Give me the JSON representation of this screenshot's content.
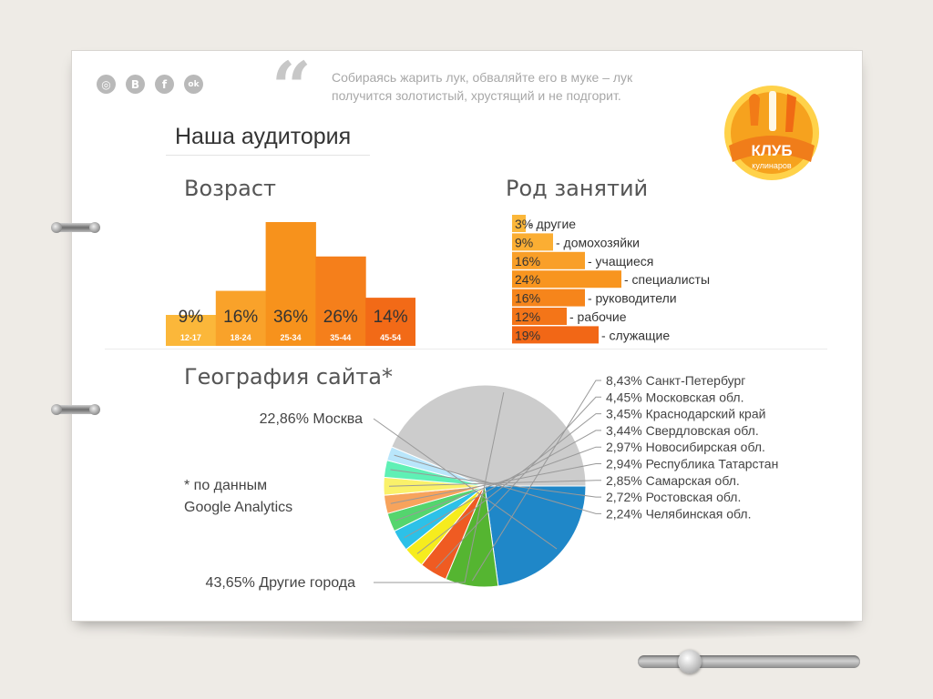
{
  "social_icons": [
    {
      "icon": "instagram-icon",
      "glyph": "◎"
    },
    {
      "icon": "vk-icon",
      "glyph": "B"
    },
    {
      "icon": "facebook-icon",
      "glyph": "f"
    },
    {
      "icon": "odnoklassniki-icon",
      "glyph": "ok"
    }
  ],
  "quote": {
    "mark": "“",
    "text": "Собираясь жарить лук, обваляйте его в муке – лук получится золотистый, хрустящий и не подгорит."
  },
  "logo": {
    "line1": "КЛУБ",
    "line2": "кулинаров",
    "colors": {
      "orange": "#f28a1d",
      "yellow": "#ffd24a",
      "white": "#ffffff"
    }
  },
  "page_title": "Наша аудитория",
  "age": {
    "title": "Возраст",
    "chart_data": {
      "type": "bar",
      "categories": [
        "12-17",
        "18-24",
        "25-34",
        "35-44",
        "45-54"
      ],
      "values": [
        9,
        16,
        36,
        26,
        14
      ],
      "value_labels": [
        "9%",
        "16%",
        "36%",
        "26%",
        "14%"
      ],
      "ylim": [
        0,
        36
      ],
      "colors": [
        "#fbb73a",
        "#f9a22a",
        "#f7921c",
        "#f57f1b",
        "#f26a17"
      ]
    }
  },
  "occupation": {
    "title": "Род занятий",
    "chart_data": {
      "type": "bar",
      "orientation": "horizontal",
      "categories": [
        "- другие",
        "- домохозяйки",
        "- учащиеся",
        "- специалисты",
        "- руководители",
        "- рабочие",
        "- служащие"
      ],
      "values": [
        3,
        9,
        16,
        24,
        16,
        12,
        19
      ],
      "value_labels": [
        "3%",
        "9%",
        "16%",
        "24%",
        "16%",
        "12%",
        "19%"
      ],
      "xlim": [
        0,
        24
      ],
      "colors": [
        "#fbb73a",
        "#fbae33",
        "#f99f28",
        "#f8951f",
        "#f6851b",
        "#f47518",
        "#f26716"
      ]
    }
  },
  "geography": {
    "title": "География сайта*",
    "note_line1": "* по данным",
    "note_line2": "Google Analytics",
    "chart_data": {
      "type": "pie",
      "slices": [
        {
          "label": "22,86% Москва",
          "value": 22.86,
          "color": "#1f87c8"
        },
        {
          "label": "8,43% Санкт-Петербург",
          "value": 8.43,
          "color": "#55b531"
        },
        {
          "label": "4,45% Московская обл.",
          "value": 4.45,
          "color": "#ef5b22"
        },
        {
          "label": "3,45% Краснодарский край",
          "value": 3.45,
          "color": "#f6ec1e"
        },
        {
          "label": "3,44% Свердловская обл.",
          "value": 3.44,
          "color": "#2cc1e8"
        },
        {
          "label": "2,97% Новосибирская обл.",
          "value": 2.97,
          "color": "#54d56e"
        },
        {
          "label": "2,94% Республика Татарстан",
          "value": 2.94,
          "color": "#f7a35c"
        },
        {
          "label": "2,85% Самарская обл.",
          "value": 2.85,
          "color": "#faf16a"
        },
        {
          "label": "2,72% Ростовская обл.",
          "value": 2.72,
          "color": "#5ff0b5"
        },
        {
          "label": "2,24% Челябинская обл.",
          "value": 2.24,
          "color": "#b9e6fb"
        },
        {
          "label": "43,65% Другие города",
          "value": 43.65,
          "color": "#cccccc"
        }
      ]
    }
  },
  "slider": {
    "value": 0.2
  }
}
